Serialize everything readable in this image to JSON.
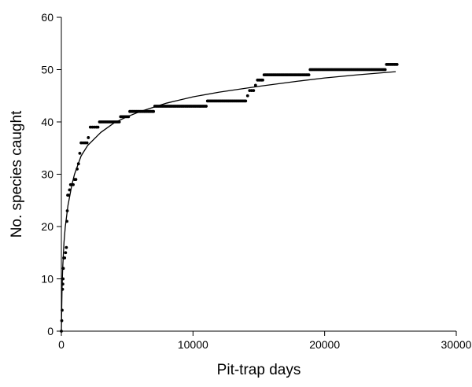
{
  "chart_data": {
    "type": "scatter",
    "title": "",
    "xlabel": "Pit-trap days",
    "ylabel": "No. species caught",
    "xlim": [
      0,
      30000
    ],
    "ylim": [
      0,
      60
    ],
    "x_ticks": [
      0,
      10000,
      20000,
      30000
    ],
    "x_tick_labels": [
      "0",
      "10000",
      "20000",
      "30000"
    ],
    "y_ticks": [
      0,
      10,
      20,
      30,
      40,
      50,
      60
    ],
    "y_tick_labels": [
      "0",
      "10",
      "20",
      "30",
      "40",
      "50",
      "60"
    ],
    "grid": false,
    "legend": "none",
    "colors": {
      "points": "#000000",
      "curve": "#000000",
      "axes": "#000000"
    },
    "steps": [
      {
        "y": 40,
        "x_start": 2900,
        "x_end": 4400
      },
      {
        "y": 41,
        "x_start": 4500,
        "x_end": 5100
      },
      {
        "y": 42,
        "x_start": 5200,
        "x_end": 7000
      },
      {
        "y": 43,
        "x_start": 7100,
        "x_end": 11000
      },
      {
        "y": 44,
        "x_start": 11100,
        "x_end": 14000
      },
      {
        "y": 48,
        "x_start": 14900,
        "x_end": 15300
      },
      {
        "y": 49,
        "x_start": 15400,
        "x_end": 18800
      },
      {
        "y": 50,
        "x_start": 18900,
        "x_end": 24600
      },
      {
        "y": 51,
        "x_start": 24700,
        "x_end": 25500
      }
    ],
    "early_points": [
      {
        "x": 0,
        "y": 0
      },
      {
        "x": 30,
        "y": 2
      },
      {
        "x": 60,
        "y": 4
      },
      {
        "x": 90,
        "y": 8
      },
      {
        "x": 110,
        "y": 9
      },
      {
        "x": 130,
        "y": 10
      },
      {
        "x": 150,
        "y": 12
      },
      {
        "x": 180,
        "y": 14
      },
      {
        "x": 250,
        "y": 14
      },
      {
        "x": 320,
        "y": 15
      },
      {
        "x": 380,
        "y": 16
      },
      {
        "x": 420,
        "y": 21
      },
      {
        "x": 450,
        "y": 23
      },
      {
        "x": 480,
        "y": 26
      },
      {
        "x": 550,
        "y": 26
      },
      {
        "x": 620,
        "y": 27
      },
      {
        "x": 700,
        "y": 28
      },
      {
        "x": 800,
        "y": 28
      },
      {
        "x": 900,
        "y": 28
      },
      {
        "x": 1000,
        "y": 29
      },
      {
        "x": 1100,
        "y": 29
      },
      {
        "x": 1200,
        "y": 31
      },
      {
        "x": 1300,
        "y": 32
      },
      {
        "x": 1400,
        "y": 34
      },
      {
        "x": 1500,
        "y": 36
      },
      {
        "x": 1650,
        "y": 36
      },
      {
        "x": 1800,
        "y": 36
      },
      {
        "x": 1950,
        "y": 36
      },
      {
        "x": 2050,
        "y": 37
      },
      {
        "x": 2200,
        "y": 39
      },
      {
        "x": 2350,
        "y": 39
      },
      {
        "x": 2500,
        "y": 39
      },
      {
        "x": 2650,
        "y": 39
      },
      {
        "x": 2780,
        "y": 39
      },
      {
        "x": 14150,
        "y": 45
      },
      {
        "x": 14300,
        "y": 46
      },
      {
        "x": 14450,
        "y": 46
      },
      {
        "x": 14600,
        "y": 46
      },
      {
        "x": 14750,
        "y": 47
      }
    ],
    "fitted_curve": {
      "x": [
        0,
        50,
        100,
        200,
        300,
        500,
        800,
        1000,
        1500,
        2000,
        3000,
        4000,
        5000,
        6000,
        8000,
        10000,
        12000,
        15000,
        18000,
        20000,
        22500,
        25400
      ],
      "y": [
        0,
        8,
        12,
        17,
        20,
        24,
        28,
        30,
        33.5,
        35.5,
        38,
        39.8,
        41,
        42,
        43.6,
        44.8,
        45.7,
        46.8,
        47.8,
        48.4,
        49,
        49.6
      ]
    }
  }
}
